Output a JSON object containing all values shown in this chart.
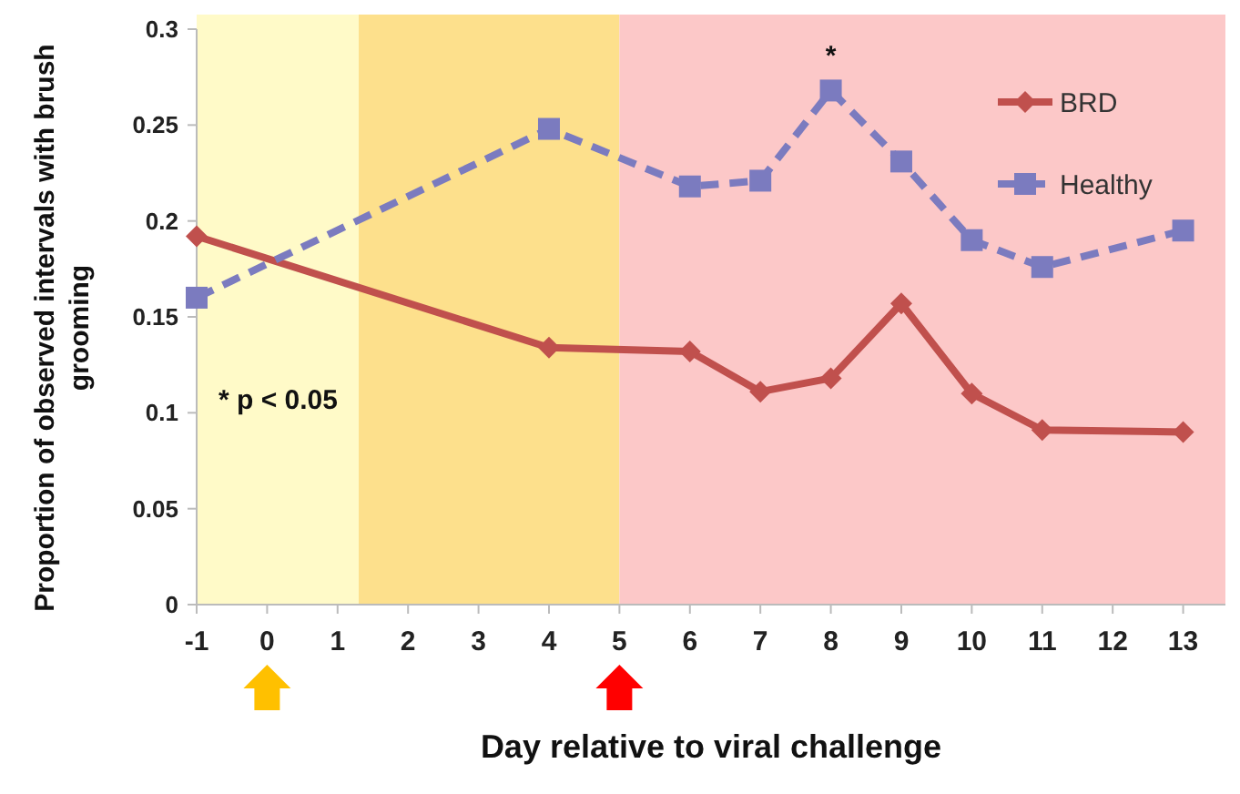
{
  "chart_data": {
    "type": "line",
    "xlabel": "Day relative to viral challenge",
    "ylabel": "Proportion of observed intervals with brush grooming",
    "series": [
      {
        "name": "BRD",
        "color": "#c0504d",
        "marker": "diamond",
        "line_style": "solid",
        "x": [
          -1,
          4,
          6,
          7,
          8,
          9,
          10,
          11,
          13
        ],
        "values": [
          0.192,
          0.134,
          0.132,
          0.111,
          0.118,
          0.157,
          0.11,
          0.091,
          0.09
        ]
      },
      {
        "name": "Healthy",
        "color": "#7b7bbf",
        "marker": "square",
        "line_style": "dashed",
        "x": [
          -1,
          4,
          6,
          7,
          8,
          9,
          10,
          11,
          13
        ],
        "values": [
          0.16,
          0.248,
          0.218,
          0.221,
          0.268,
          0.231,
          0.19,
          0.176,
          0.195
        ]
      }
    ],
    "xlim": [
      -1,
      13.6
    ],
    "xticks": [
      -1,
      0,
      1,
      2,
      3,
      4,
      5,
      6,
      7,
      8,
      9,
      10,
      11,
      12,
      13
    ],
    "ylim": [
      0,
      0.3
    ],
    "yticks": [
      0,
      0.05,
      0.1,
      0.15,
      0.2,
      0.25,
      0.3
    ],
    "bands": [
      {
        "axis": "x",
        "from": -1,
        "to": 1.3,
        "color": "#fffac8"
      },
      {
        "axis": "x",
        "from": 1.3,
        "to": 5,
        "color": "#fde08c"
      },
      {
        "axis": "x",
        "from": 5,
        "to": 13.6,
        "color": "#fcc8c8"
      }
    ],
    "annotations": [
      "* p < 0.05",
      {
        "text": "*",
        "x": 8,
        "y": 0.268
      }
    ],
    "legend": "top right",
    "grid": false
  }
}
